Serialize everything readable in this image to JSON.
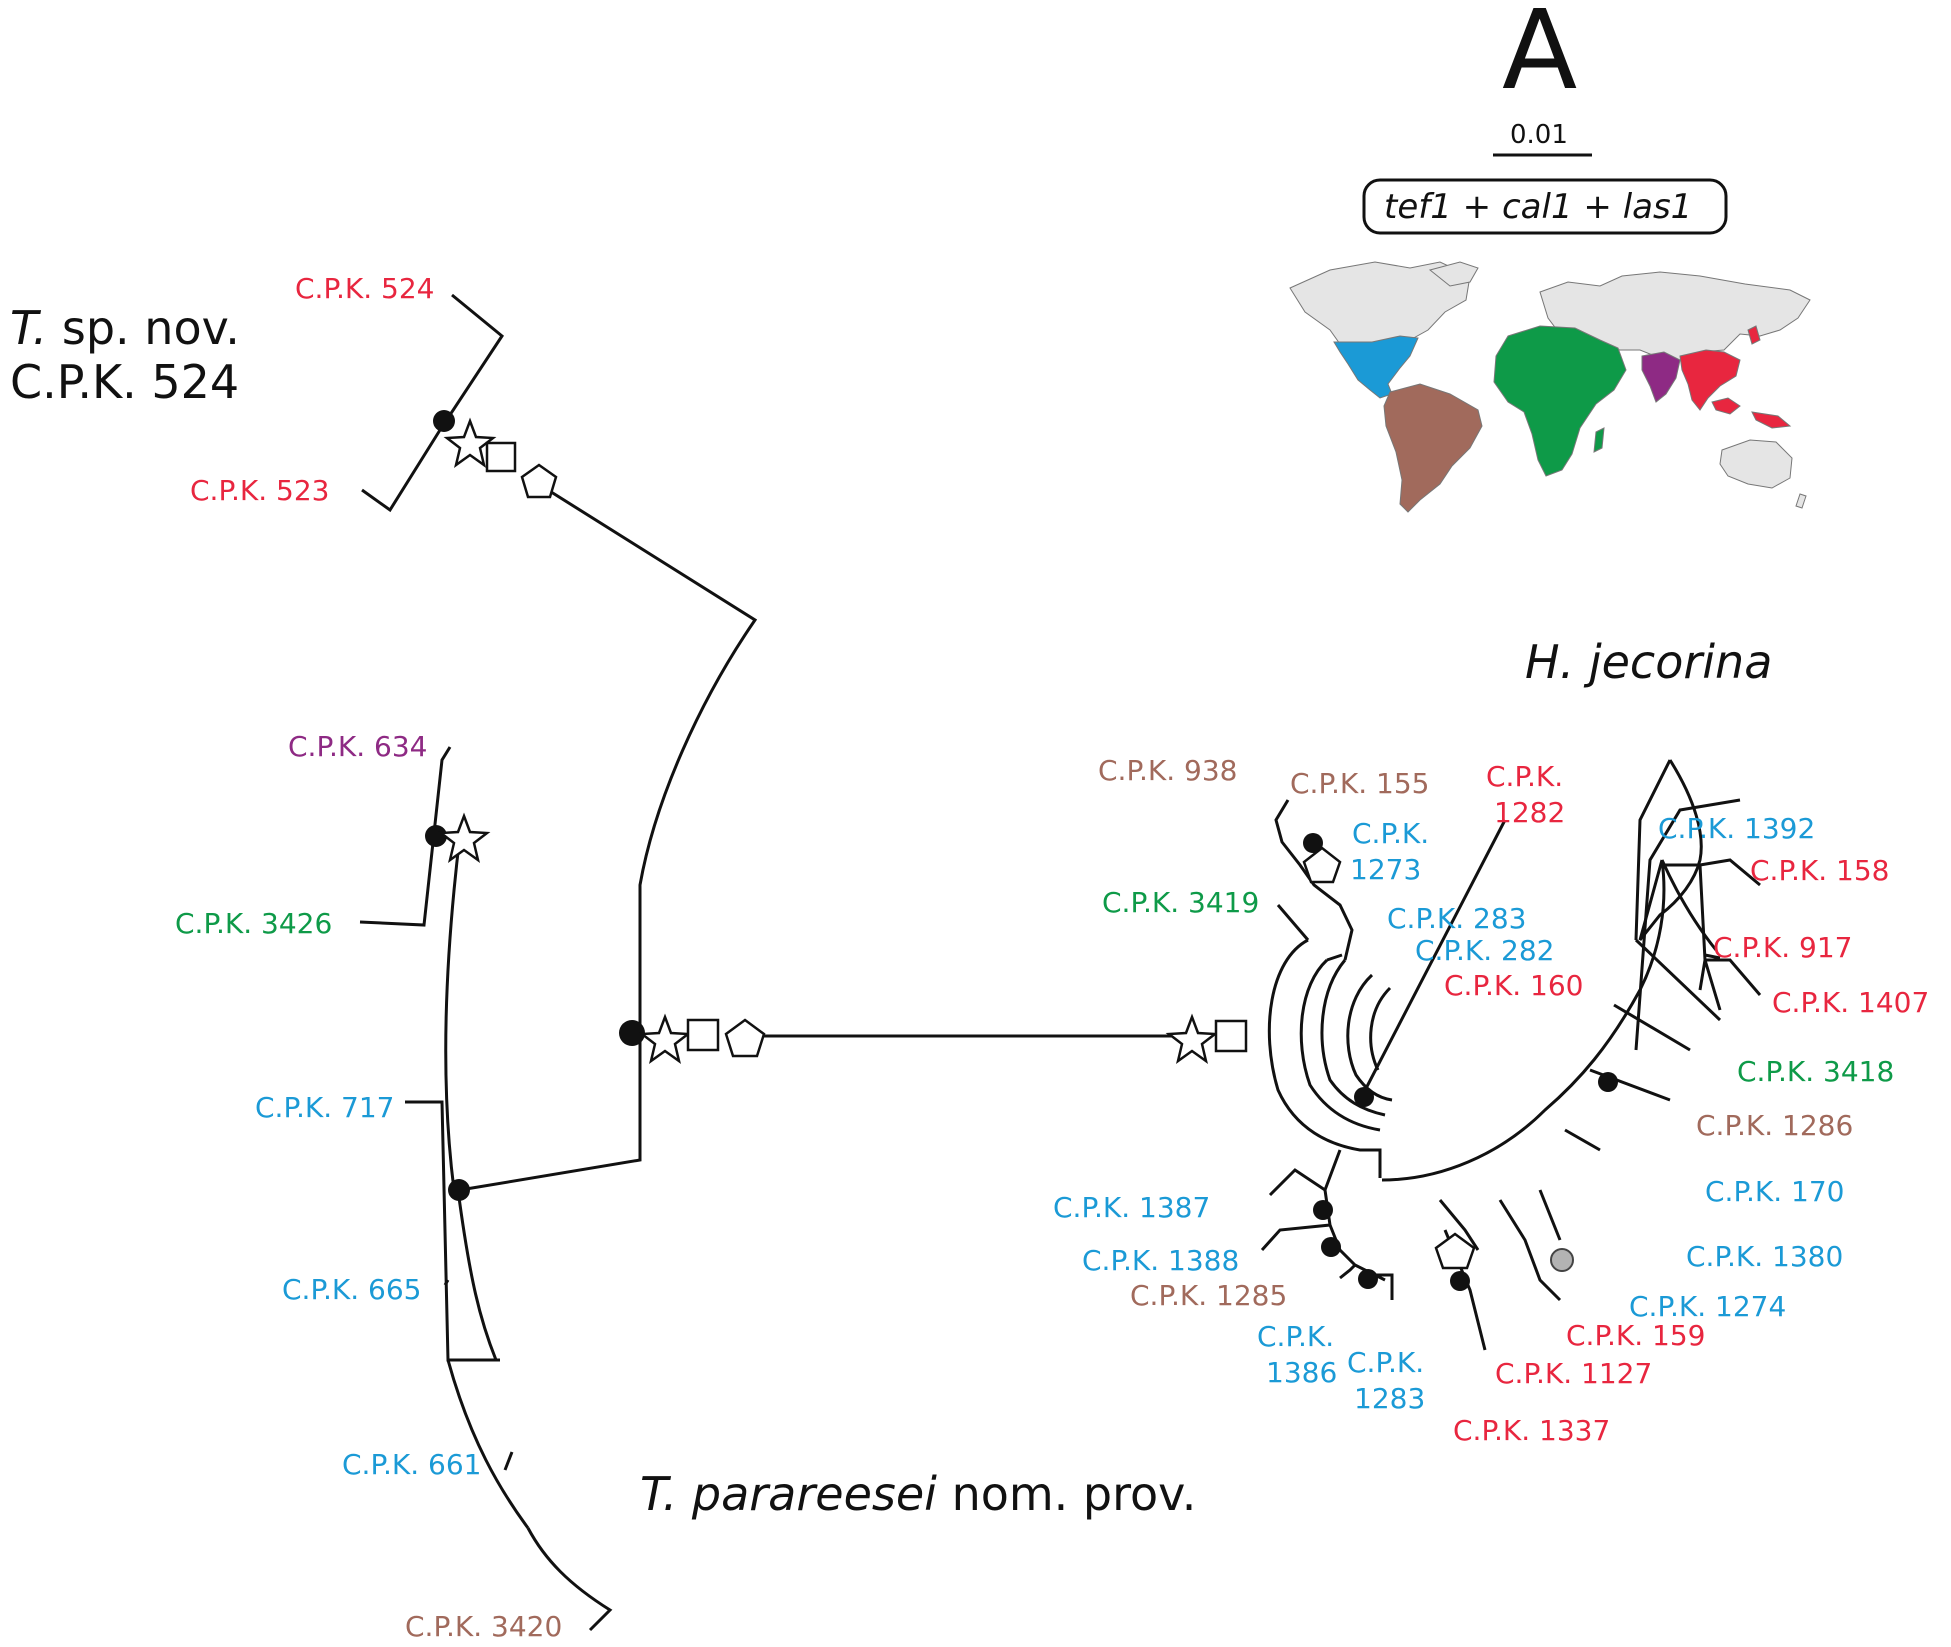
{
  "panel_letter": "A",
  "scale_bar": {
    "value": "0.01"
  },
  "markers": {
    "genes": [
      "tef1",
      "cal1",
      "las1"
    ],
    "separator": " + "
  },
  "colors": {
    "red": "#e8263f",
    "blue": "#1b9ad6",
    "green": "#0e9a48",
    "brown": "#a16a5c",
    "purple": "#8e2a84",
    "gray_land": "#e5e5e5",
    "gray_support": "#b3b3b3"
  },
  "clades": {
    "sp_nov": {
      "genus": "T.",
      "name": "sp. nov.",
      "strain": "C.P.K. 524"
    },
    "parareesei": {
      "genus": "T. parareesei",
      "status": "nom. prov."
    },
    "jecorina": {
      "name": "H. jecorina"
    }
  },
  "taxa": {
    "cpk524": "C.P.K. 524",
    "cpk523": "C.P.K. 523",
    "cpk634": "C.P.K. 634",
    "cpk3426": "C.P.K. 3426",
    "cpk717": "C.P.K. 717",
    "cpk665": "C.P.K. 665",
    "cpk661": "C.P.K. 661",
    "cpk3420": "C.P.K. 3420",
    "cpk938": "C.P.K. 938",
    "cpk155": "C.P.K. 155",
    "cpk1282a": "C.P.K.",
    "cpk1282b": "1282",
    "cpk1273a": "C.P.K.",
    "cpk1273b": "1273",
    "cpk3419": "C.P.K. 3419",
    "cpk283": "C.P.K. 283",
    "cpk282": "C.P.K. 282",
    "cpk160": "C.P.K. 160",
    "cpk1392": "C.P.K. 1392",
    "cpk158": "C.P.K. 158",
    "cpk917": "C.P.K. 917",
    "cpk1407": "C.P.K. 1407",
    "cpk3418": "C.P.K. 3418",
    "cpk1286": "C.P.K. 1286",
    "cpk170": "C.P.K. 170",
    "cpk1380": "C.P.K. 1380",
    "cpk1274": "C.P.K. 1274",
    "cpk159": "C.P.K. 159",
    "cpk1127": "C.P.K. 1127",
    "cpk1337": "C.P.K. 1337",
    "cpk1387": "C.P.K. 1387",
    "cpk1388": "C.P.K. 1388",
    "cpk1285": "C.P.K. 1285",
    "cpk1386a": "C.P.K.",
    "cpk1386b": "1386",
    "cpk1283a": "C.P.K.",
    "cpk1283b": "1283"
  }
}
